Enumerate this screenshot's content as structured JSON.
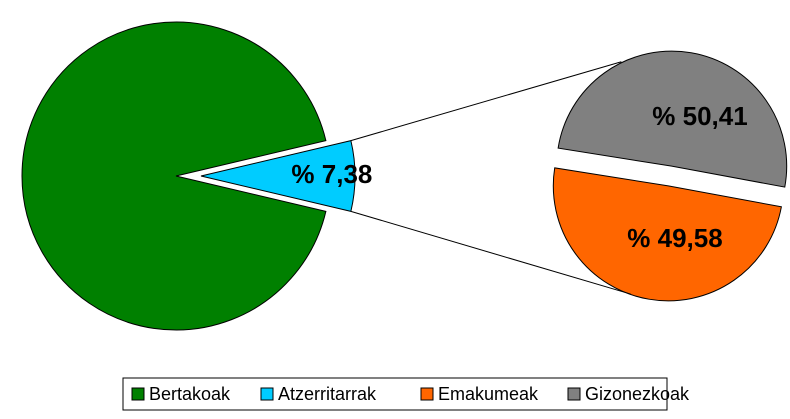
{
  "chart_data": {
    "type": "pie-of-pie",
    "pie": {
      "categories": [
        "Bertakoak",
        "Atzerritarrak"
      ],
      "values": [
        92.62,
        7.38
      ],
      "value_labels": [
        null,
        "% 7,38"
      ],
      "colors": [
        "#008000",
        "#00ccff"
      ]
    },
    "subpie": {
      "categories": [
        "Emakumeak",
        "Gizonezkoak"
      ],
      "values": [
        49.58,
        50.41
      ],
      "value_labels": [
        "% 49,58",
        "% 50,41"
      ],
      "colors": [
        "#ff6600",
        "#808080"
      ]
    },
    "legend": "bottom"
  }
}
